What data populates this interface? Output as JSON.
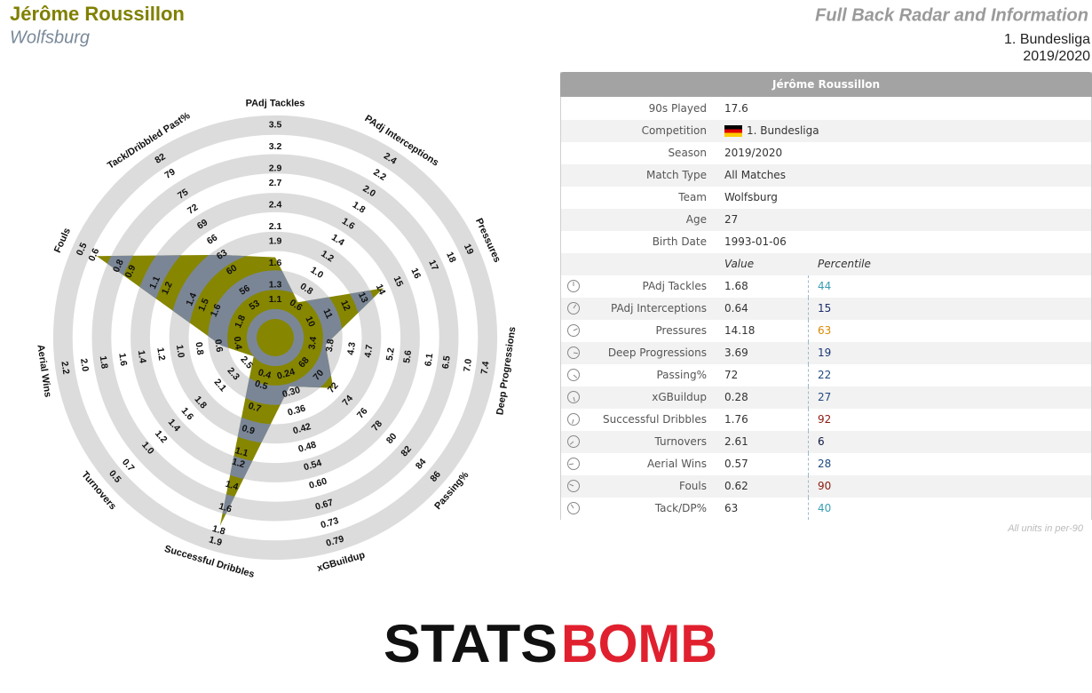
{
  "header": {
    "player": "Jérôme Roussillon",
    "team": "Wolfsburg",
    "report_title": "Full Back Radar and Information",
    "competition": "1. Bundesliga",
    "season": "2019/2020"
  },
  "chart_data": {
    "type": "radar",
    "categories": [
      "PAdj Tackles",
      "PAdj Interceptions",
      "Pressures",
      "Deep Progressions",
      "Passing%",
      "xGBuildup",
      "Successful Dribbles",
      "Turnovers",
      "Aerial Wins",
      "Fouls",
      "Tack/Dribbled Past%"
    ],
    "series": [
      {
        "color": "#868600",
        "values": [
          1.68,
          0.64,
          14.18,
          3.69,
          72,
          0.28,
          1.76,
          2.61,
          0.57,
          0.62,
          63
        ]
      }
    ],
    "inner_color": "#7a8696",
    "ring_color": "#dcdcdc",
    "axes": [
      {
        "ticks": [
          1.1,
          1.3,
          1.6,
          1.9,
          2.1,
          2.4,
          2.7,
          2.9,
          3.2,
          3.5
        ]
      },
      {
        "ticks": [
          0.6,
          0.8,
          {
            "value": 1,
            "label": "1.0"
          },
          1.2,
          1.4,
          1.6,
          1.8,
          {
            "value": 2,
            "label": "2.0"
          },
          2.2,
          2.4
        ]
      },
      {
        "ticks": [
          10,
          11,
          12,
          13,
          14,
          15,
          16,
          17,
          18,
          19
        ]
      },
      {
        "ticks": [
          3.4,
          3.8,
          4.3,
          4.7,
          5.2,
          5.6,
          6.1,
          6.5,
          {
            "value": 7,
            "label": "7.0"
          },
          7.4
        ]
      },
      {
        "ticks": [
          68,
          70,
          72,
          74,
          76,
          78,
          80,
          82,
          84,
          86
        ]
      },
      {
        "ticks": [
          0.24,
          {
            "value": 0.3,
            "label": "0.30"
          },
          0.36,
          0.42,
          0.48,
          0.54,
          {
            "value": 0.6,
            "label": "0.60"
          },
          0.67,
          0.73,
          0.79
        ]
      },
      {
        "ticks": [
          0.4,
          0.5,
          0.7,
          0.9,
          1.1,
          1.2,
          1.4,
          1.6,
          1.8,
          1.9
        ]
      },
      {
        "ticks": [
          2.5,
          2.3,
          2.1,
          1.8,
          1.6,
          1.4,
          1.2,
          {
            "value": 1,
            "label": "1.0"
          },
          0.7,
          0.5
        ]
      },
      {
        "ticks": [
          0.4,
          0.6,
          0.8,
          {
            "value": 1,
            "label": "1.0"
          },
          1.2,
          1.4,
          1.6,
          1.8,
          {
            "value": 2,
            "label": "2.0"
          },
          2.2
        ]
      },
      {
        "ticks": [
          1.8,
          1.6,
          1.5,
          1.4,
          1.2,
          1.1,
          0.9,
          0.8,
          0.6,
          0.5
        ]
      },
      {
        "ticks": [
          53,
          56,
          60,
          63,
          66,
          69,
          72,
          75,
          79,
          82
        ]
      }
    ]
  },
  "table": {
    "info_labels": [
      "90s Played",
      "Competition",
      "Season",
      "Match Type",
      "Team",
      "Age",
      "Birth Date"
    ],
    "played": 17.6,
    "match_type": "All Matches",
    "age": 27,
    "birth_date": "1993-01-06",
    "value_header": "Value",
    "percentile_header": "Percentile",
    "metric_labels": [
      "PAdj Tackles",
      "PAdj Interceptions",
      "Pressures",
      "Deep Progressions",
      "Passing%",
      "xGBuildup",
      "Successful Dribbles",
      "Turnovers",
      "Aerial Wins",
      "Fouls",
      "Tack/DP%"
    ],
    "percentiles": [
      44,
      15,
      63,
      19,
      22,
      27,
      92,
      6,
      28,
      90,
      40
    ],
    "percentile_colors": [
      "#3a9fb5",
      "#1a2f6a",
      "#d98a00",
      "#1a3672",
      "#1e4a80",
      "#1e4a80",
      "#8b1a10",
      "#101840",
      "#1e4a80",
      "#8b1a10",
      "#3a9fb5"
    ],
    "note": "All units in per-90"
  },
  "footer": {
    "logo_left": "STATS",
    "logo_right": "BOMB"
  }
}
